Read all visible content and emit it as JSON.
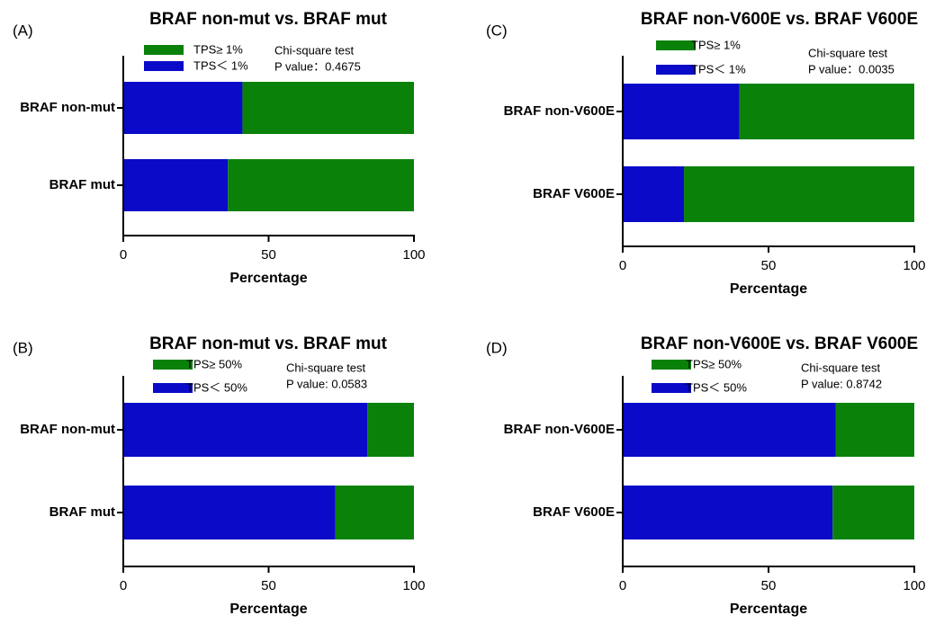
{
  "chart_data": [
    {
      "type": "bar",
      "panel": "(A)",
      "title": "BRAF non-mut vs. BRAF mut",
      "x_label": "Percentage",
      "categories": [
        "BRAF non-mut",
        "BRAF mut"
      ],
      "series": [
        {
          "name": "TPS＜ 1%",
          "color": "#0a0ac8",
          "values": [
            41,
            36
          ]
        },
        {
          "name": "TPS≥  1%",
          "color": "#0a820a",
          "values": [
            59,
            64
          ]
        }
      ],
      "annotations": [
        "Chi-square test",
        "P value：0.4675"
      ],
      "xlim": [
        0,
        100
      ],
      "xticks": [
        0,
        50,
        100
      ],
      "stacked": true
    },
    {
      "type": "bar",
      "panel": "(C)",
      "title": "BRAF non-V600E vs. BRAF V600E",
      "x_label": "Percentage",
      "categories": [
        "BRAF non-V600E",
        "BRAF V600E"
      ],
      "series": [
        {
          "name": "TPS＜ 1%",
          "color": "#0a0ac8",
          "values": [
            40,
            21
          ]
        },
        {
          "name": "TPS≥  1%",
          "color": "#0a820a",
          "values": [
            60,
            79
          ]
        }
      ],
      "annotations": [
        "Chi-square test",
        "P value：0.0035"
      ],
      "xlim": [
        0,
        100
      ],
      "xticks": [
        0,
        50,
        100
      ],
      "stacked": true
    },
    {
      "type": "bar",
      "panel": "(B)",
      "title": "BRAF non-mut vs. BRAF mut",
      "x_label": "Percentage",
      "categories": [
        "BRAF non-mut",
        "BRAF mut"
      ],
      "series": [
        {
          "name": "TPS＜ 50%",
          "color": "#0a0ac8",
          "values": [
            84,
            73
          ]
        },
        {
          "name": "TPS≥  50%",
          "color": "#0a820a",
          "values": [
            16,
            27
          ]
        }
      ],
      "annotations": [
        "Chi-square test",
        "P value: 0.0583"
      ],
      "xlim": [
        0,
        100
      ],
      "xticks": [
        0,
        50,
        100
      ],
      "stacked": true
    },
    {
      "type": "bar",
      "panel": "(D)",
      "title": "BRAF non-V600E vs. BRAF V600E",
      "x_label": "Percentage",
      "categories": [
        "BRAF non-V600E",
        "BRAF V600E"
      ],
      "series": [
        {
          "name": "TPS＜ 50%",
          "color": "#0a0ac8",
          "values": [
            73,
            72
          ]
        },
        {
          "name": "TPS≥  50%",
          "color": "#0a820a",
          "values": [
            27,
            28
          ]
        }
      ],
      "annotations": [
        "Chi-square test",
        "P value: 0.8742"
      ],
      "xlim": [
        0,
        100
      ],
      "xticks": [
        0,
        50,
        100
      ],
      "stacked": true
    }
  ]
}
